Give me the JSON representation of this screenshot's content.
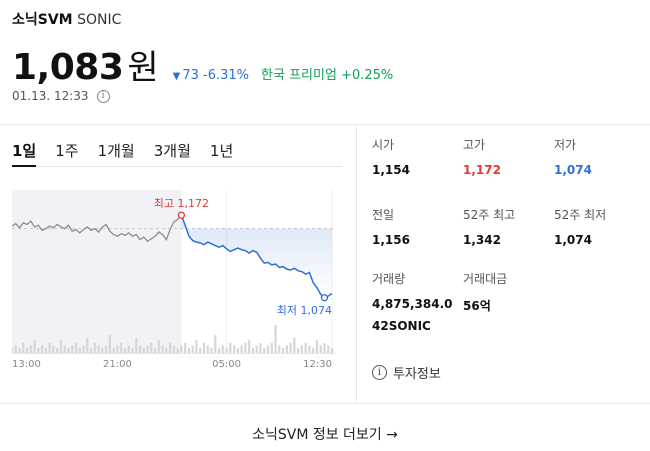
{
  "coin": {
    "name": "소닉SVM",
    "symbol": "SONIC"
  },
  "price": {
    "value": "1,083",
    "unit": "원"
  },
  "change": {
    "arrow": "▼",
    "amount": "73",
    "percent": "-6.31%"
  },
  "premium": {
    "label": "한국 프리미엄",
    "value": "+0.25%"
  },
  "timestamp": "01.13. 12:33",
  "tabs": [
    "1일",
    "1주",
    "1개월",
    "3개월",
    "1년"
  ],
  "active_tab": "1일",
  "chart_data": {
    "type": "line",
    "x_ticks": [
      "13:00",
      "21:00",
      "05:00",
      "12:30"
    ],
    "high": {
      "label": "최고",
      "value": "1,172"
    },
    "low": {
      "label": "최저",
      "value": "1,074"
    },
    "values": [
      1159,
      1162,
      1157,
      1163,
      1161,
      1165,
      1158,
      1160,
      1154,
      1156,
      1159,
      1157,
      1161,
      1158,
      1156,
      1160,
      1153,
      1155,
      1151,
      1155,
      1158,
      1154,
      1156,
      1152,
      1158,
      1161,
      1153,
      1149,
      1147,
      1150,
      1148,
      1151,
      1147,
      1149,
      1143,
      1146,
      1141,
      1144,
      1147,
      1152,
      1149,
      1143,
      1155,
      1164,
      1167,
      1172,
      1160,
      1147,
      1142,
      1140,
      1139,
      1137,
      1140,
      1138,
      1136,
      1134,
      1136,
      1132,
      1129,
      1131,
      1133,
      1131,
      1130,
      1127,
      1130,
      1128,
      1121,
      1115,
      1116,
      1113,
      1114,
      1110,
      1111,
      1108,
      1107,
      1109,
      1106,
      1105,
      1102,
      1104,
      1092,
      1086,
      1078,
      1074,
      1076,
      1079
    ],
    "volume": [
      2,
      3,
      2,
      4,
      2,
      3,
      5,
      2,
      3,
      2,
      4,
      3,
      2,
      5,
      3,
      2,
      3,
      4,
      2,
      3,
      6,
      2,
      4,
      3,
      2,
      3,
      7,
      2,
      3,
      4,
      2,
      3,
      2,
      6,
      3,
      2,
      3,
      4,
      2,
      5,
      3,
      2,
      4,
      3,
      2,
      3,
      4,
      2,
      3,
      5,
      2,
      4,
      3,
      2,
      7,
      2,
      3,
      2,
      4,
      3,
      2,
      3,
      4,
      5,
      2,
      3,
      4,
      2,
      3,
      4,
      11,
      3,
      2,
      3,
      4,
      6,
      2,
      3,
      4,
      3,
      2,
      5,
      3,
      4,
      3,
      2
    ],
    "reference_value": 1156
  },
  "stats": {
    "open": {
      "label": "시가",
      "value": "1,154"
    },
    "high": {
      "label": "고가",
      "value": "1,172"
    },
    "low": {
      "label": "저가",
      "value": "1,074"
    },
    "prev_close": {
      "label": "전일",
      "value": "1,156"
    },
    "high_52w": {
      "label": "52주 최고",
      "value": "1,342"
    },
    "low_52w": {
      "label": "52주 최저",
      "value": "1,074"
    },
    "volume": {
      "label": "거래량",
      "value": "4,875,384.0",
      "unit": "42SONIC"
    },
    "trade_value": {
      "label": "거래대금",
      "value": "56억"
    }
  },
  "invest_info": "투자정보",
  "more_link": "소닉SVM 정보 더보기 →",
  "colors": {
    "up": "#e53935",
    "down": "#2f6fd8",
    "premium": "#0f9d58"
  }
}
